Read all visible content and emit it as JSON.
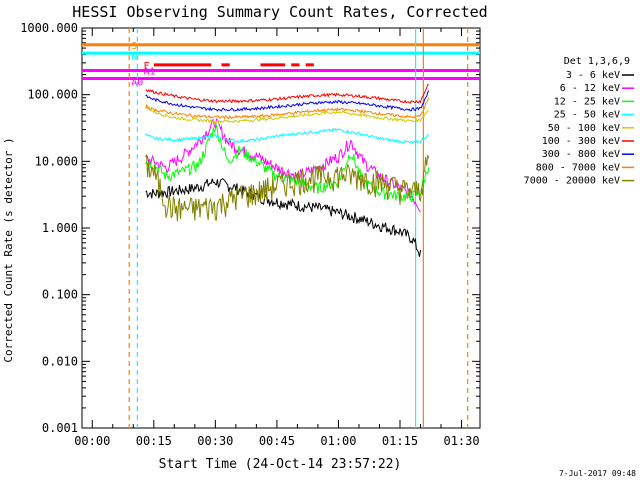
{
  "chart_data": {
    "type": "line",
    "title": "HESSI Observing Summary Count Rates, Corrected",
    "xlabel": "Start Time (24-Oct-14 23:57:22)",
    "ylabel": "Corrected Count Rate (s⁻¹ detector⁻¹)",
    "ylabel_visible": "Corrected Count Rate (s  detector  )",
    "y_scale": "log",
    "ylim": [
      0.001,
      1000
    ],
    "xlim_min": [
      -2.5,
      94.5
    ],
    "x_tick_values": [
      0,
      15,
      30,
      45,
      60,
      75,
      90
    ],
    "x_ticks": [
      "00:00",
      "00:15",
      "00:30",
      "00:45",
      "01:00",
      "01:15",
      "01:30"
    ],
    "y_tick_values": [
      0.001,
      0.01,
      0.1,
      1,
      10,
      100,
      1000
    ],
    "y_ticks": [
      "0.001",
      "0.010",
      "0.100",
      "1.000",
      "10.000",
      "100.000",
      "1000.000"
    ],
    "legend_title": "Det 1,3,6,9",
    "legend_placement": "right",
    "series": [
      {
        "name": "3 - 6 keV",
        "color": "#000000",
        "x": [
          13,
          15,
          20,
          25,
          30,
          35,
          40,
          45,
          50,
          55,
          60,
          65,
          70,
          75,
          78,
          80
        ],
        "y": [
          3.5,
          3.3,
          3.6,
          4.0,
          5.0,
          4.0,
          3.0,
          2.5,
          2.2,
          2.0,
          1.7,
          1.4,
          1.1,
          0.9,
          0.7,
          0.4
        ]
      },
      {
        "name": "6 - 12 keV",
        "color": "#ff00ff",
        "x": [
          13,
          15,
          18,
          22,
          26,
          30,
          33,
          36,
          40,
          45,
          50,
          55,
          60,
          63,
          66,
          70,
          75,
          78,
          80
        ],
        "y": [
          11,
          10,
          8,
          12,
          20,
          40,
          20,
          15,
          12,
          8,
          6,
          8,
          12,
          20,
          10,
          6,
          4,
          3,
          2
        ]
      },
      {
        "name": "12 - 25 keV",
        "color": "#00ff00",
        "x": [
          13,
          15,
          18,
          22,
          26,
          30,
          33,
          36,
          40,
          45,
          50,
          55,
          60,
          63,
          66,
          70,
          75,
          78,
          80,
          82
        ],
        "y": [
          10,
          9,
          6,
          7,
          9,
          35,
          10,
          15,
          10,
          6,
          5,
          4,
          5,
          14,
          5,
          3.5,
          3,
          3,
          3.5,
          9
        ]
      },
      {
        "name": "25 - 50 keV",
        "color": "#00ffff",
        "x": [
          13,
          15,
          20,
          25,
          30,
          35,
          40,
          45,
          50,
          55,
          60,
          65,
          70,
          75,
          78,
          80,
          82
        ],
        "y": [
          25,
          22,
          21,
          22,
          24,
          20,
          21,
          24,
          26,
          28,
          30,
          26,
          22,
          20,
          19,
          20,
          25
        ]
      },
      {
        "name": "50 - 100 keV",
        "color": "#cccc00",
        "x": [
          13,
          15,
          20,
          25,
          30,
          35,
          40,
          45,
          50,
          55,
          60,
          65,
          70,
          75,
          78,
          80,
          82
        ],
        "y": [
          70,
          55,
          45,
          42,
          40,
          40,
          42,
          45,
          48,
          52,
          55,
          50,
          45,
          42,
          40,
          42,
          60
        ]
      },
      {
        "name": "100 - 300 keV",
        "color": "#ff0000",
        "x": [
          13,
          15,
          20,
          25,
          30,
          35,
          40,
          45,
          50,
          55,
          60,
          65,
          70,
          75,
          78,
          80,
          82
        ],
        "y": [
          120,
          110,
          95,
          85,
          80,
          80,
          82,
          86,
          92,
          98,
          100,
          95,
          88,
          80,
          78,
          80,
          150
        ]
      },
      {
        "name": "300 - 800 keV",
        "color": "#0000ff",
        "x": [
          13,
          15,
          20,
          25,
          30,
          35,
          40,
          45,
          50,
          55,
          60,
          65,
          70,
          75,
          78,
          80,
          82
        ],
        "y": [
          95,
          85,
          72,
          64,
          60,
          60,
          62,
          66,
          71,
          76,
          78,
          74,
          68,
          62,
          60,
          62,
          110
        ]
      },
      {
        "name": "800 - 7000 keV",
        "color": "#ff8000",
        "x": [
          13,
          15,
          20,
          25,
          30,
          35,
          40,
          45,
          50,
          55,
          60,
          65,
          70,
          75,
          78,
          80,
          82
        ],
        "y": [
          65,
          60,
          52,
          48,
          46,
          46,
          47,
          50,
          54,
          58,
          60,
          57,
          52,
          48,
          46,
          48,
          90
        ]
      },
      {
        "name": "7000 - 20000 keV",
        "color": "#808000",
        "x": [
          13,
          15,
          18,
          20,
          25,
          30,
          35,
          40,
          45,
          50,
          55,
          60,
          65,
          70,
          75,
          78,
          80,
          82
        ],
        "y": [
          9,
          7,
          2.5,
          2,
          2,
          2.2,
          3,
          3.5,
          4.5,
          5.5,
          6,
          6.5,
          6,
          5,
          4,
          3.5,
          4,
          12
        ]
      }
    ],
    "annotations": {
      "flag_lines": [
        {
          "label": "S",
          "color": "#ff8000",
          "y": 560
        },
        {
          "label": "N",
          "color": "#00ffff",
          "y": 420
        },
        {
          "label": "A0",
          "color": "#ff00ff",
          "y": 175
        },
        {
          "label": "A1",
          "color": "#ff00ff",
          "y": 230
        },
        {
          "label": "F",
          "color": "#ff0000",
          "y": 280
        }
      ],
      "vertical_markers": [
        {
          "x": 9,
          "color": "#ff8000",
          "style": "dashed"
        },
        {
          "x": 11,
          "color": "#00ffff",
          "style": "dashed"
        },
        {
          "x": 91.5,
          "color": "#ff8000",
          "style": "dashed"
        },
        {
          "x": 78.8,
          "color": "#00ffff",
          "style": "solid"
        },
        {
          "x": 80.7,
          "color": "#ff8000",
          "style": "solid"
        }
      ]
    },
    "timestamp": "7-Jul-2017 09:48"
  }
}
